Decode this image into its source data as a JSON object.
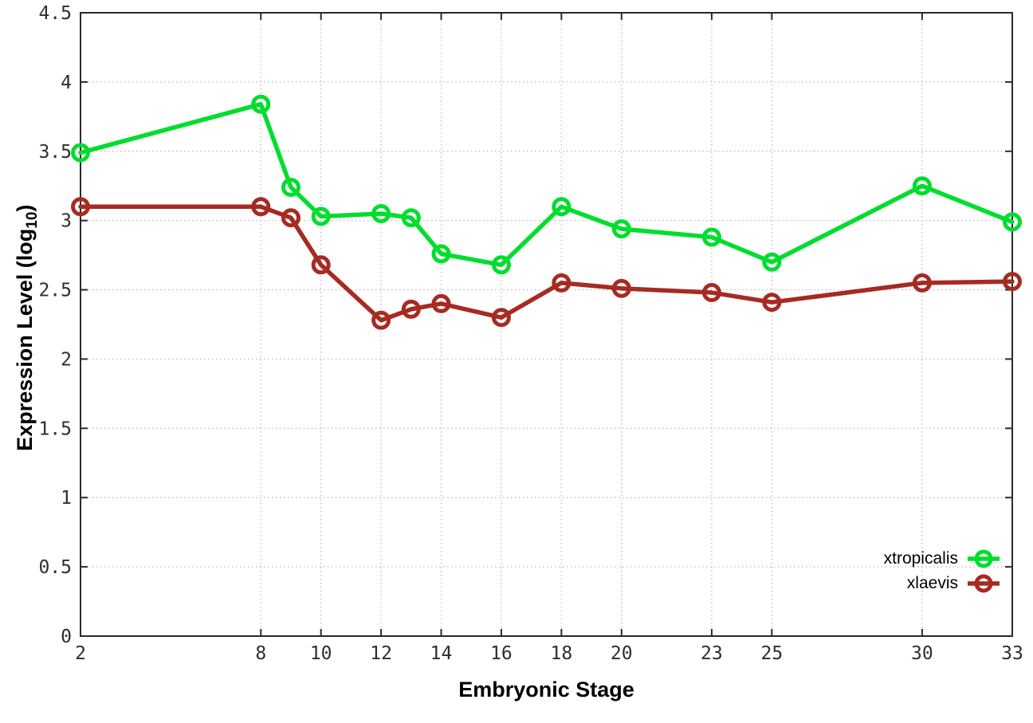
{
  "chart_data": {
    "type": "line",
    "xlabel": "Embryonic Stage",
    "ylabel": {
      "prefix": "Expression Level (log",
      "sub": "10",
      "suffix": ")"
    },
    "x": [
      2,
      8,
      9,
      10,
      12,
      13,
      14,
      16,
      18,
      20,
      23,
      25,
      30,
      33
    ],
    "series": [
      {
        "name": "xtropicalis",
        "color": "#02dd2e",
        "values": [
          3.49,
          3.84,
          3.24,
          3.03,
          3.05,
          3.02,
          2.76,
          2.68,
          3.1,
          2.94,
          2.88,
          2.7,
          3.25,
          2.99
        ]
      },
      {
        "name": "xlaevis",
        "color": "#a62b22",
        "values": [
          3.1,
          3.1,
          3.02,
          2.68,
          2.28,
          2.36,
          2.4,
          2.3,
          2.55,
          2.51,
          2.48,
          2.41,
          2.55,
          2.56
        ]
      }
    ],
    "xticks": [
      2,
      8,
      10,
      12,
      14,
      16,
      18,
      20,
      23,
      25,
      30,
      33
    ],
    "yticks": [
      0,
      0.5,
      1,
      1.5,
      2,
      2.5,
      3,
      3.5,
      4,
      4.5
    ],
    "ytick_labels": [
      "0",
      "0.5",
      "1",
      "1.5",
      "2",
      "2.5",
      "3",
      "3.5",
      "4",
      "4.5"
    ],
    "xlim": [
      2,
      33
    ],
    "ylim": [
      0,
      4.5
    ],
    "grid": true,
    "legend_position": "inside-bottom-right",
    "marker": "open-circle"
  },
  "colors": {
    "background": "#ffffff",
    "border": "#2a2a2a",
    "grid": "#b8b8b8",
    "tick_label": "#2e2e2e"
  }
}
